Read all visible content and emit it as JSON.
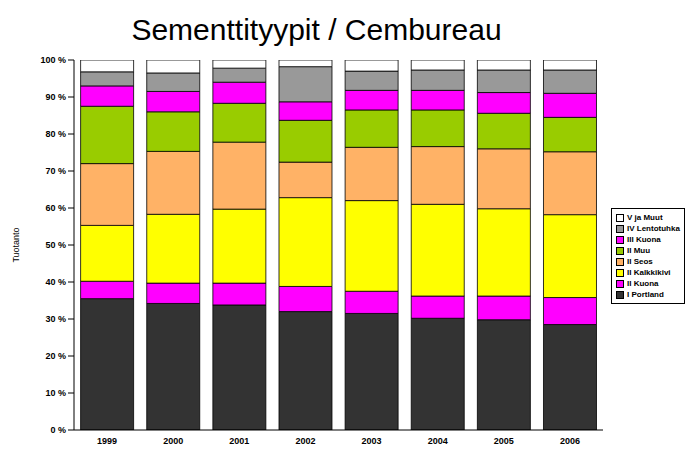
{
  "chart_data": {
    "type": "bar",
    "title": "Sementtityypit / Cembureau",
    "y_label": "Tuotanto",
    "stacked": true,
    "grid": false,
    "legend": "right",
    "categories": [
      "1999",
      "2000",
      "2001",
      "2002",
      "2003",
      "2004",
      "2005",
      "2006"
    ],
    "ylim": [
      0,
      100
    ],
    "yticks": [
      {
        "value": 0,
        "label": "0 %"
      },
      {
        "value": 10,
        "label": "10 %"
      },
      {
        "value": 20,
        "label": "20 %"
      },
      {
        "value": 30,
        "label": "30 %"
      },
      {
        "value": 40,
        "label": "40 %"
      },
      {
        "value": 50,
        "label": "50 %"
      },
      {
        "value": 60,
        "label": "60 %"
      },
      {
        "value": 70,
        "label": "70 %"
      },
      {
        "value": 80,
        "label": "80 %"
      },
      {
        "value": 90,
        "label": "90 %"
      },
      {
        "value": 100,
        "label": "100 %"
      }
    ],
    "series": [
      {
        "name": "I Portland",
        "color": "#333333",
        "values": [
          35.5,
          34.2,
          33.8,
          32,
          31.5,
          30.2,
          29.8,
          28.5
        ]
      },
      {
        "name": "II Kuona",
        "color": "#ff00ff",
        "values": [
          4.7,
          5.5,
          5.9,
          6.8,
          6,
          6,
          6.4,
          7.3
        ]
      },
      {
        "name": "II Kalkkikivi",
        "color": "#ffff00",
        "values": [
          15.1,
          18.6,
          20,
          24,
          24.5,
          24.8,
          23.6,
          22.4
        ]
      },
      {
        "name": "II Seos",
        "color": "#ffb266",
        "values": [
          16.7,
          17,
          18.1,
          9.6,
          14.4,
          15.6,
          16.2,
          17
        ]
      },
      {
        "name": "II Muu",
        "color": "#99cc00",
        "values": [
          15.5,
          10.7,
          10.5,
          11.3,
          10.1,
          9.9,
          9.6,
          9.3
        ]
      },
      {
        "name": "III Kuona",
        "color": "#ff00ff",
        "values": [
          5.5,
          5.5,
          5.7,
          5,
          5.3,
          5.3,
          5.6,
          6.5
        ]
      },
      {
        "name": "IV Lentotuhka",
        "color": "#999999",
        "values": [
          3.8,
          5,
          3.8,
          9.5,
          5.2,
          5.5,
          6.1,
          6.3
        ]
      },
      {
        "name": "V ja Muut",
        "color": "#ffffff",
        "values": [
          3.2,
          3.5,
          2.2,
          1.8,
          3,
          2.7,
          2.7,
          2.7
        ]
      }
    ]
  }
}
